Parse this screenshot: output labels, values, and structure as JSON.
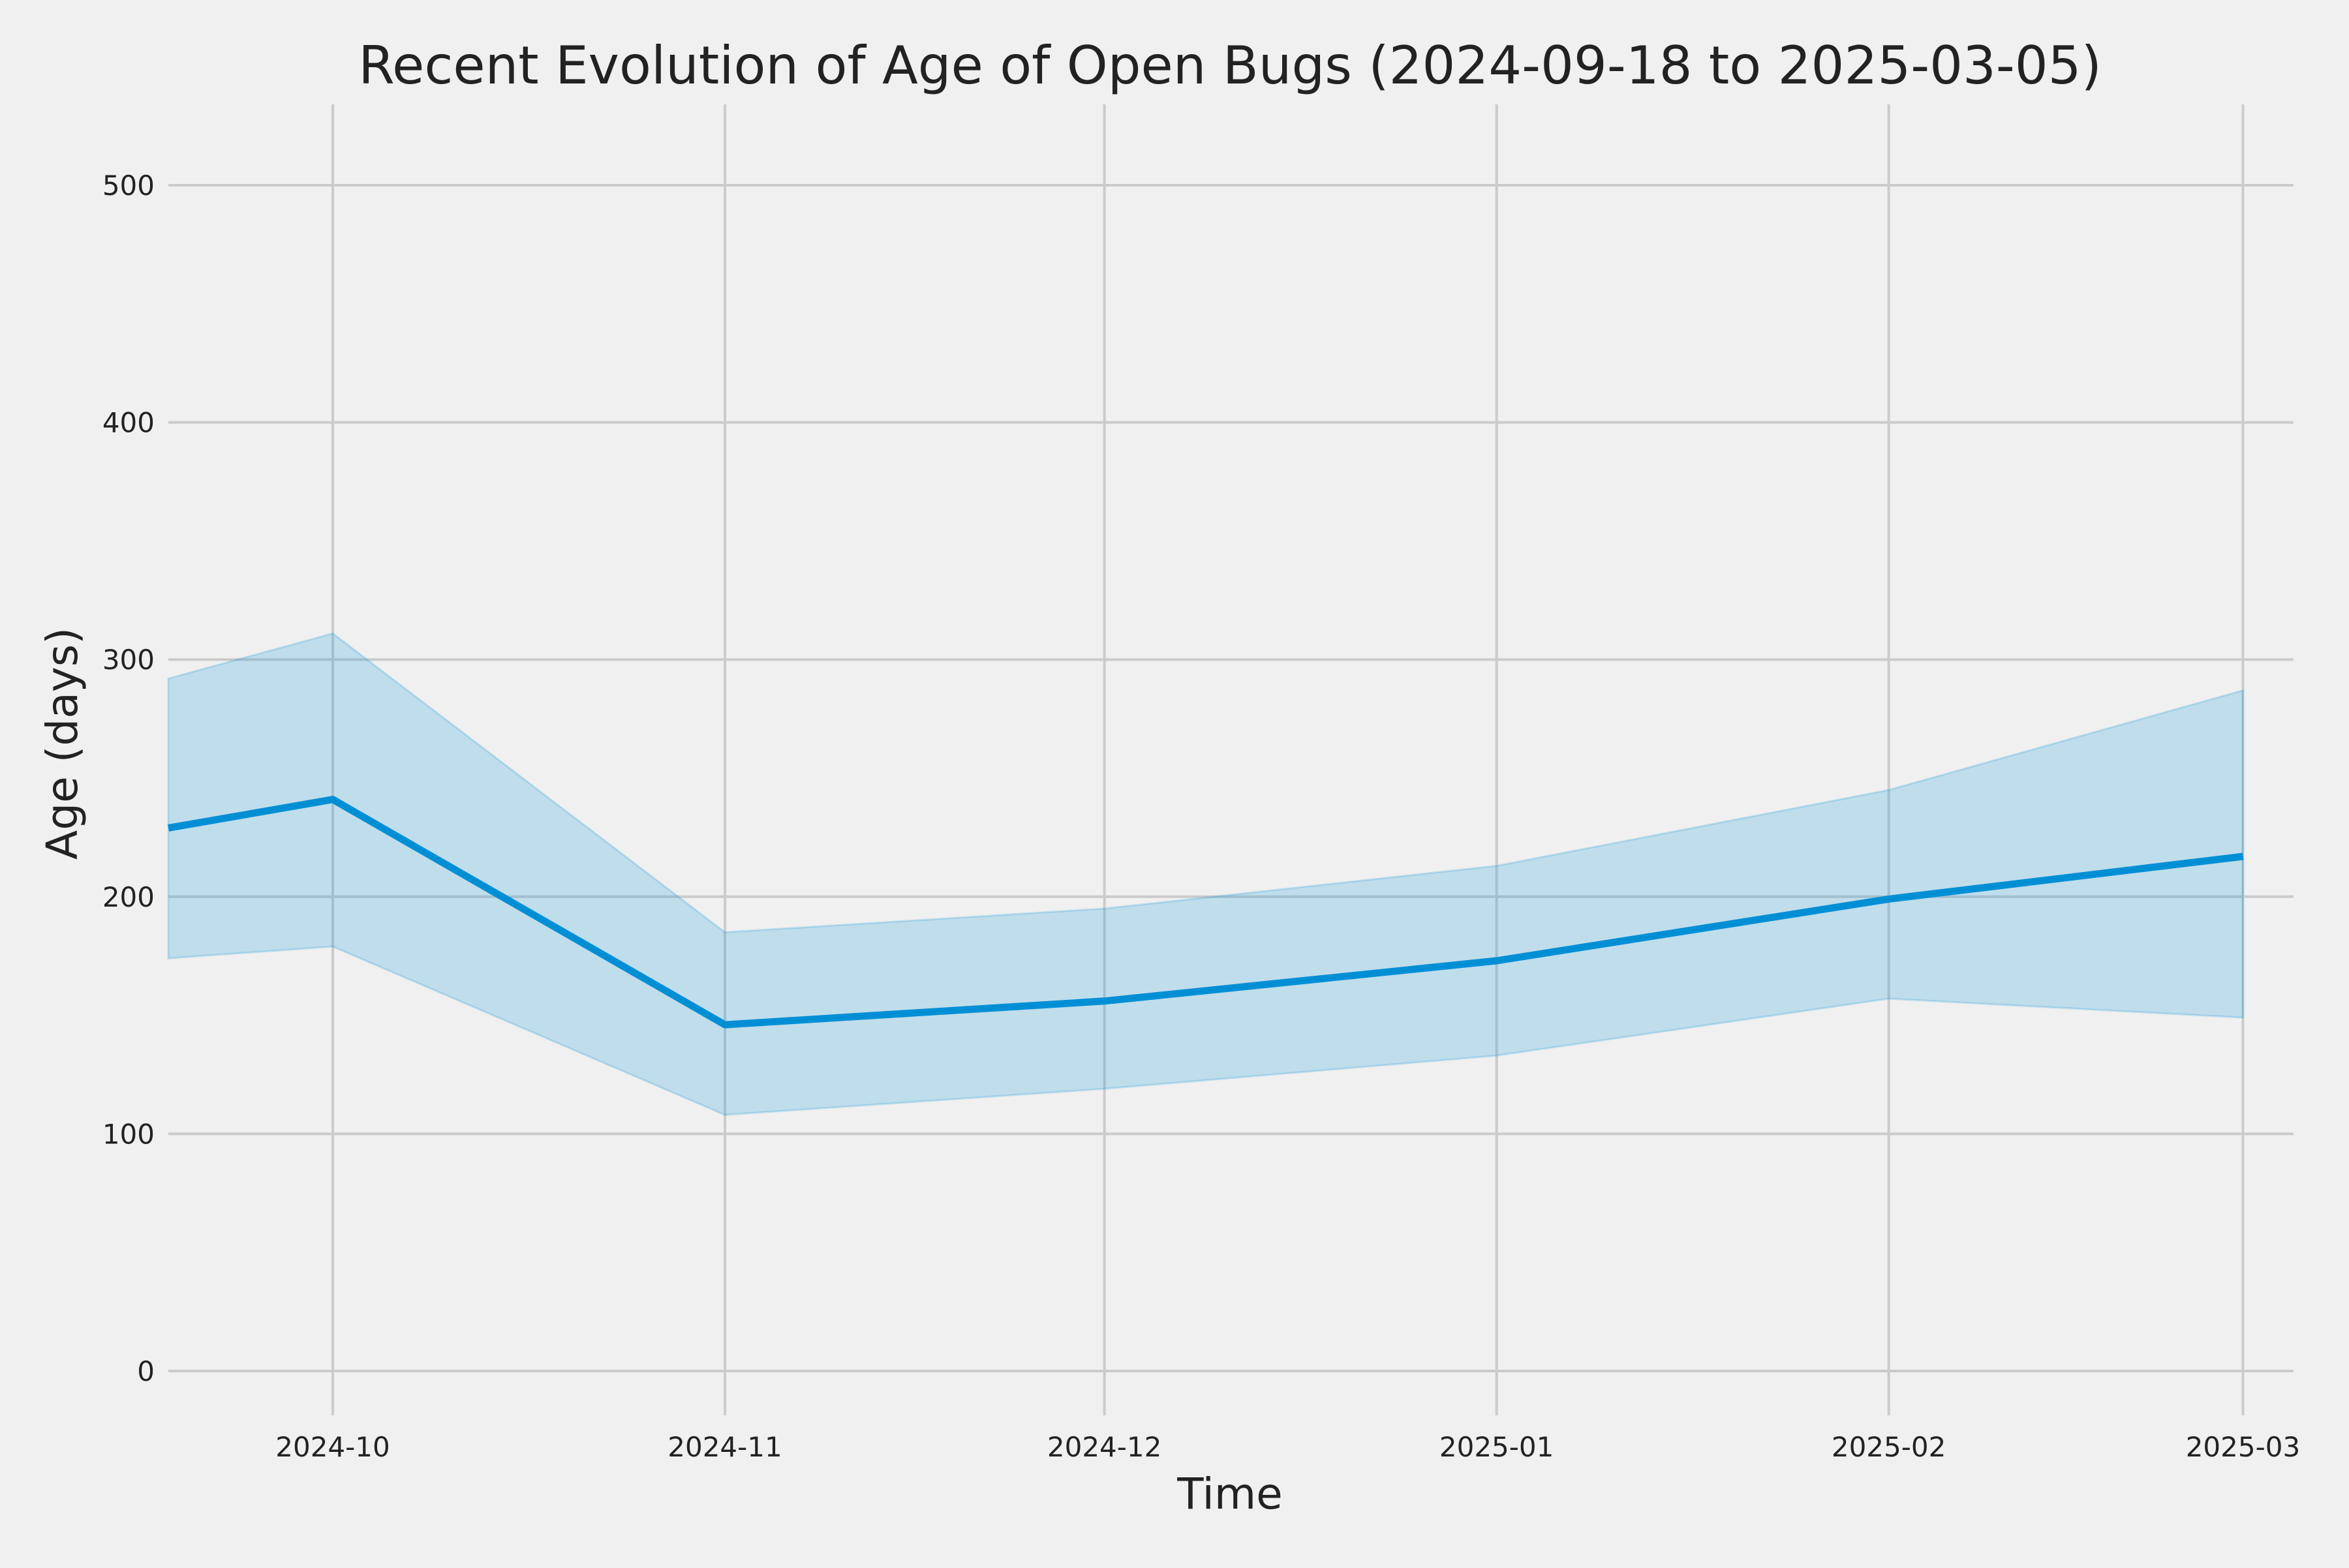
{
  "chart_data": {
    "type": "line",
    "title": "Recent Evolution of Age of Open Bugs (2024-09-18 to 2025-03-05)",
    "xlabel": "Time",
    "ylabel": "Age (days)",
    "x_tick_labels": [
      "2024-10",
      "2024-11",
      "2024-12",
      "2025-01",
      "2025-02",
      "2025-03"
    ],
    "x_tick_values": [
      "2024-10-01",
      "2024-11-01",
      "2024-12-01",
      "2025-01-01",
      "2025-02-01",
      "2025-03-01"
    ],
    "y_ticks": [
      0,
      100,
      200,
      300,
      400,
      500
    ],
    "xlim": [
      "2024-09-18",
      "2025-03-05"
    ],
    "ylim": [
      -20,
      535
    ],
    "grid": true,
    "x": [
      "2024-09-18",
      "2024-10-01",
      "2024-11-01",
      "2024-12-01",
      "2025-01-01",
      "2025-02-01",
      "2025-03-01"
    ],
    "series": [
      {
        "values": [
          229,
          241,
          146,
          156,
          173,
          199,
          217
        ],
        "upper": [
          292,
          311,
          185,
          195,
          213,
          245,
          287
        ],
        "lower": [
          174,
          179,
          108,
          119,
          133,
          157,
          149
        ]
      }
    ],
    "colors": {
      "line": "#008fd5",
      "band": "#008fd5",
      "background": "#f0f0f0",
      "grid": "#cbcbcb"
    }
  }
}
